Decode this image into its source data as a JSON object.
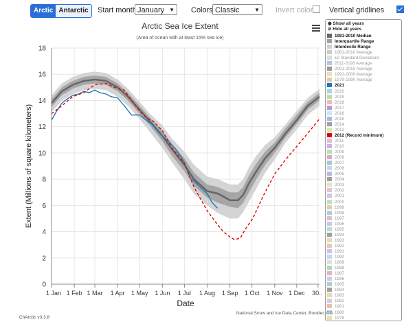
{
  "toolbar": {
    "arctic_label": "Arctic",
    "antarctic_label": "Antarctic",
    "start_month_label": "Start month:",
    "start_month_value": "January",
    "colors_label": "Colors:",
    "colors_value": "Classic",
    "invert_colors_label": "Invert colors",
    "invert_colors_checked": false,
    "vertical_gridlines_label": "Vertical gridlines",
    "vertical_gridlines_checked": true
  },
  "legend": {
    "show_all": "Show all years",
    "hide_all": "Hide all years",
    "items": [
      {
        "label": "1981-2010 Median",
        "color": "#666666",
        "bold": true
      },
      {
        "label": "Interquartile Range",
        "color": "#a0a0a0",
        "bold": true
      },
      {
        "label": "Interdecile Range",
        "color": "#cfcfcf",
        "bold": true
      },
      {
        "label": "1981-2010 Average",
        "color": "#cccccc",
        "bold": false
      },
      {
        "label": "±2 Standard Deviations",
        "color": "#dddddd",
        "bold": false
      },
      {
        "label": "2011-2020 Average",
        "color": "#b0c8e0",
        "bold": false
      },
      {
        "label": "2001-2010 Average",
        "color": "#999999",
        "bold": false
      },
      {
        "label": "1991-2000 Average",
        "color": "#e8e0b8",
        "bold": false
      },
      {
        "label": "1979-1990 Average",
        "color": "#e8c8a8",
        "bold": false
      },
      {
        "label": "2021",
        "color": "#1f77b4",
        "bold": true
      },
      {
        "label": "2020",
        "color": "#a6d4e6",
        "bold": false
      },
      {
        "label": "2019",
        "color": "#b8e0a0",
        "bold": false
      },
      {
        "label": "2018",
        "color": "#f4b8b8",
        "bold": false
      },
      {
        "label": "2017",
        "color": "#b89ad0",
        "bold": false
      },
      {
        "label": "2016",
        "color": "#c8e8f0",
        "bold": false
      },
      {
        "label": "2015",
        "color": "#a8b8e8",
        "bold": false
      },
      {
        "label": "2014",
        "color": "#a0a0a0",
        "bold": false
      },
      {
        "label": "2013",
        "color": "#d8e8b0",
        "bold": false
      },
      {
        "label": "2012 (Record minimum)",
        "color": "#e00000",
        "bold": true
      },
      {
        "label": "2011",
        "color": "#f0b8d8",
        "bold": false
      },
      {
        "label": "2010",
        "color": "#d0b0e0",
        "bold": false
      },
      {
        "label": "2009",
        "color": "#b8e0b0",
        "bold": false
      },
      {
        "label": "2008",
        "color": "#d8a8c8",
        "bold": false
      },
      {
        "label": "2007",
        "color": "#a8c8d8",
        "bold": false
      },
      {
        "label": "2006",
        "color": "#c8d8e8",
        "bold": false
      },
      {
        "label": "2005",
        "color": "#b8b8e0",
        "bold": false
      },
      {
        "label": "2004",
        "color": "#a0a0a0",
        "bold": false
      },
      {
        "label": "2003",
        "color": "#e0e8c0",
        "bold": false
      },
      {
        "label": "2002",
        "color": "#e8c0d0",
        "bold": false
      },
      {
        "label": "2001",
        "color": "#d8c0e8",
        "bold": false
      },
      {
        "label": "2000",
        "color": "#c0e0c0",
        "bold": false
      },
      {
        "label": "1999",
        "color": "#e0d0a8",
        "bold": false
      },
      {
        "label": "1998",
        "color": "#a8d0e0",
        "bold": false
      },
      {
        "label": "1997",
        "color": "#e8b8c8",
        "bold": false
      },
      {
        "label": "1996",
        "color": "#c8c8e8",
        "bold": false
      },
      {
        "label": "1995",
        "color": "#b0e0d0",
        "bold": false
      },
      {
        "label": "1994",
        "color": "#a0a0a0",
        "bold": false
      },
      {
        "label": "1993",
        "color": "#e0e0b0",
        "bold": false
      },
      {
        "label": "1992",
        "color": "#e8c8b0",
        "bold": false
      },
      {
        "label": "1991",
        "color": "#d0c0e8",
        "bold": false
      },
      {
        "label": "1990",
        "color": "#c0d8f0",
        "bold": false
      },
      {
        "label": "1989",
        "color": "#d8e8c8",
        "bold": false
      },
      {
        "label": "1988",
        "color": "#b0d8c0",
        "bold": false
      },
      {
        "label": "1987",
        "color": "#e8b0c0",
        "bold": false
      },
      {
        "label": "1986",
        "color": "#c8d0e8",
        "bold": false
      },
      {
        "label": "1985",
        "color": "#b8c8d8",
        "bold": false
      },
      {
        "label": "1984",
        "color": "#a0a0a0",
        "bold": false
      },
      {
        "label": "1983",
        "color": "#e0e0a8",
        "bold": false
      },
      {
        "label": "1982",
        "color": "#d8c8e0",
        "bold": false
      },
      {
        "label": "1981",
        "color": "#e8c0b0",
        "bold": false
      },
      {
        "label": "1980",
        "color": "#c0d0e8",
        "bold": false
      },
      {
        "label": "1979",
        "color": "#e8e0b0",
        "bold": false
      }
    ]
  },
  "footer": {
    "version": "ChArctic v3.3.8",
    "credit": "National Snow and Ice Data Center, Boulder, CO"
  },
  "chart_data": {
    "type": "line",
    "title": "Arctic Sea Ice Extent",
    "subtitle": "(Area of ocean with at least 15% sea ice)",
    "xlabel": "Date",
    "ylabel": "Extent (Millions of square kilometers)",
    "ylim": [
      0,
      18
    ],
    "yticks": [
      0,
      2,
      4,
      6,
      8,
      10,
      12,
      14,
      16,
      18
    ],
    "xlim": [
      1,
      366
    ],
    "xticks": [
      {
        "label": "1 Jan",
        "day": 1
      },
      {
        "label": "1 Feb",
        "day": 32
      },
      {
        "label": "1 Mar",
        "day": 60
      },
      {
        "label": "1 Apr",
        "day": 91
      },
      {
        "label": "1 May",
        "day": 121
      },
      {
        "label": "1 Jun",
        "day": 152
      },
      {
        "label": "1 Jul",
        "day": 182
      },
      {
        "label": "1 Aug",
        "day": 213
      },
      {
        "label": "1 Sep",
        "day": 244
      },
      {
        "label": "1 Oct",
        "day": 274
      },
      {
        "label": "1 Nov",
        "day": 305
      },
      {
        "label": "1 Dec",
        "day": 335
      },
      {
        "label": "30...",
        "day": 364
      }
    ],
    "vertical_gridlines": true,
    "legend_position": "right",
    "median": {
      "name": "1981-2010 Median",
      "color": "#666666",
      "x": [
        1,
        15,
        30,
        45,
        60,
        75,
        91,
        105,
        121,
        135,
        152,
        165,
        182,
        195,
        213,
        228,
        244,
        255,
        262,
        270,
        280,
        292,
        305,
        320,
        335,
        350,
        366
      ],
      "y": [
        13.8,
        14.7,
        15.2,
        15.5,
        15.6,
        15.5,
        15.0,
        14.3,
        13.3,
        12.4,
        11.3,
        10.3,
        9.1,
        8.0,
        7.1,
        6.9,
        6.4,
        6.4,
        6.8,
        7.7,
        8.6,
        9.6,
        10.4,
        11.5,
        12.5,
        13.6,
        14.3
      ]
    },
    "interquartile": {
      "name": "Interquartile Range",
      "color": "#a6a6a6",
      "x": [
        1,
        15,
        30,
        45,
        60,
        75,
        91,
        105,
        121,
        135,
        152,
        165,
        182,
        195,
        213,
        228,
        244,
        255,
        262,
        270,
        280,
        292,
        305,
        320,
        335,
        350,
        366
      ],
      "low": [
        13.5,
        14.4,
        14.9,
        15.2,
        15.3,
        15.2,
        14.7,
        14.0,
        13.0,
        12.1,
        10.9,
        9.8,
        8.6,
        7.5,
        6.6,
        6.2,
        5.9,
        5.8,
        6.2,
        7.0,
        8.0,
        9.1,
        10.0,
        11.2,
        12.2,
        13.3,
        14.0
      ],
      "high": [
        14.1,
        15.0,
        15.5,
        15.8,
        15.9,
        15.8,
        15.3,
        14.6,
        13.6,
        12.7,
        11.7,
        10.7,
        9.6,
        8.5,
        7.6,
        7.4,
        7.0,
        7.0,
        7.4,
        8.3,
        9.2,
        10.1,
        10.8,
        11.9,
        12.9,
        13.9,
        14.6
      ]
    },
    "interdecile": {
      "name": "Interdecile Range",
      "color": "#d4d4d4",
      "x": [
        1,
        15,
        30,
        45,
        60,
        75,
        91,
        105,
        121,
        135,
        152,
        165,
        182,
        195,
        213,
        228,
        244,
        255,
        262,
        270,
        280,
        292,
        305,
        320,
        335,
        350,
        366
      ],
      "low": [
        13.1,
        14.0,
        14.5,
        14.8,
        14.9,
        14.8,
        14.3,
        13.6,
        12.6,
        11.6,
        10.4,
        9.3,
        8.0,
        6.9,
        6.0,
        5.4,
        5.0,
        5.0,
        5.5,
        6.3,
        7.3,
        8.5,
        9.5,
        10.8,
        11.8,
        12.9,
        13.6
      ],
      "high": [
        14.4,
        15.3,
        15.8,
        16.1,
        16.2,
        16.1,
        15.6,
        14.9,
        13.9,
        13.0,
        12.1,
        11.1,
        10.1,
        9.1,
        8.2,
        8.0,
        7.6,
        7.6,
        8.0,
        8.9,
        9.8,
        10.6,
        11.2,
        12.2,
        13.2,
        14.2,
        14.9
      ]
    },
    "series": [
      {
        "name": "2021",
        "color": "#1f77b4",
        "dashed": false,
        "x": [
          1,
          8,
          15,
          22,
          30,
          38,
          45,
          52,
          60,
          67,
          75,
          82,
          91,
          100,
          110,
          121,
          130,
          140,
          152,
          160,
          170,
          182,
          190,
          200,
          213,
          220,
          227
        ],
        "y": [
          12.5,
          13.2,
          13.8,
          14.1,
          14.4,
          14.5,
          14.7,
          14.6,
          14.8,
          14.6,
          14.5,
          14.3,
          14.2,
          13.6,
          12.9,
          12.9,
          12.5,
          12.1,
          11.3,
          10.9,
          10.3,
          9.3,
          8.1,
          7.6,
          6.9,
          6.2,
          5.8
        ]
      },
      {
        "name": "2012 (Record minimum)",
        "color": "#e00000",
        "dashed": true,
        "x": [
          1,
          15,
          30,
          45,
          60,
          75,
          91,
          100,
          110,
          121,
          130,
          140,
          152,
          165,
          182,
          195,
          213,
          225,
          235,
          244,
          250,
          258,
          265,
          275,
          290,
          305,
          320,
          335,
          350,
          366
        ],
        "y": [
          13.0,
          13.6,
          14.3,
          14.6,
          15.2,
          15.3,
          14.9,
          14.8,
          14.0,
          13.2,
          12.7,
          12.4,
          11.7,
          10.4,
          9.2,
          7.4,
          5.6,
          4.7,
          4.0,
          3.6,
          3.4,
          3.5,
          4.2,
          5.0,
          6.8,
          8.4,
          9.5,
          10.5,
          11.5,
          12.6
        ]
      }
    ]
  }
}
